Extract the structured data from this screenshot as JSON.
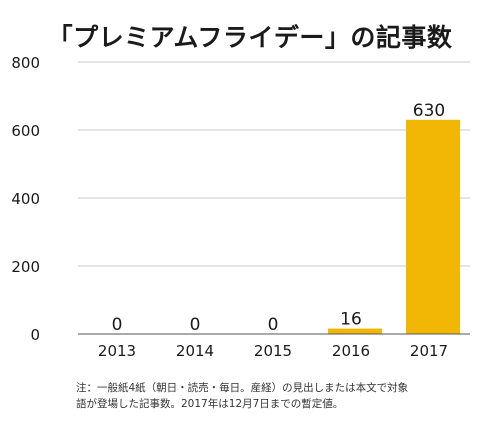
{
  "chart_data": {
    "type": "bar",
    "title": "「プレミアムフライデー」の記事数",
    "categories": [
      "2013",
      "2014",
      "2015",
      "2016",
      "2017"
    ],
    "values": [
      0,
      0,
      0,
      16,
      630
    ],
    "data_labels": [
      "0",
      "0",
      "0",
      "16",
      "630"
    ],
    "xlabel": "",
    "ylabel": "",
    "ylim": [
      0,
      800
    ],
    "yticks": [
      "0",
      "200",
      "400",
      "600",
      "800"
    ],
    "grid": true,
    "bar_color": "#f2b705",
    "note_lines": [
      "注：一般紙4紙（朝日・読売・毎日。産経）の見出しまたは本文で対象",
      "語が登場した記事数。2017年は12月7日までの暫定値。"
    ]
  }
}
